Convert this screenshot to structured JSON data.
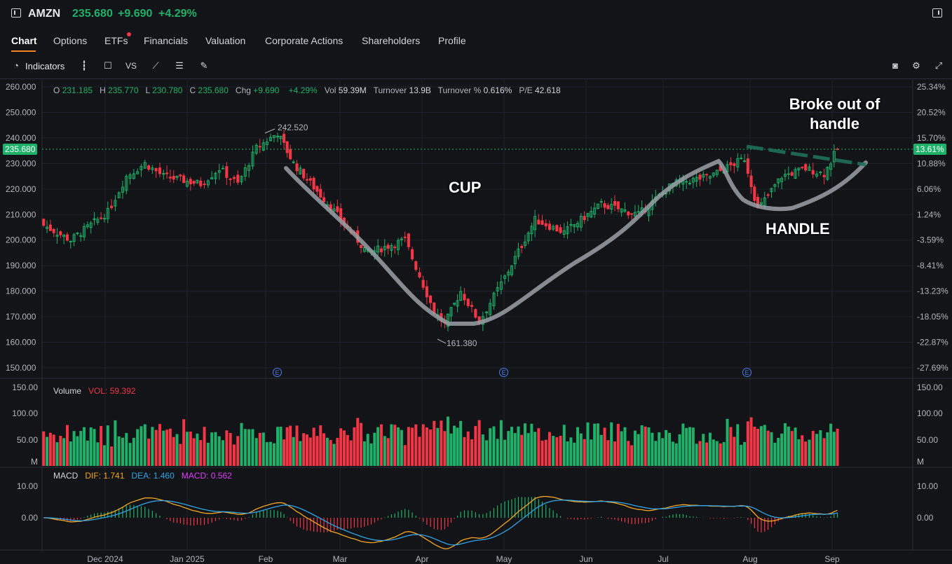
{
  "header": {
    "ticker": "AMZN",
    "price": "235.680",
    "change": "+9.690",
    "change_pct": "+4.29%"
  },
  "tabs": [
    {
      "label": "Chart",
      "active": true
    },
    {
      "label": "Options"
    },
    {
      "label": "ETFs",
      "badge": true
    },
    {
      "label": "Financials"
    },
    {
      "label": "Valuation"
    },
    {
      "label": "Corporate Actions"
    },
    {
      "label": "Shareholders"
    },
    {
      "label": "Profile"
    }
  ],
  "toolbar": {
    "indicators_label": "Indicators",
    "vs_label": "VS",
    "icons": [
      "indicators-icon",
      "candlestick-icon",
      "rectangle-icon",
      "vs-compare",
      "line-chart-icon",
      "list-icon",
      "draw-pen-icon",
      "camera-icon",
      "settings-gear-icon",
      "fullscreen-icon"
    ]
  },
  "ohlc": {
    "o_label": "O",
    "o": "231.185",
    "h_label": "H",
    "h": "235.770",
    "l_label": "L",
    "l": "230.780",
    "c_label": "C",
    "c": "235.680",
    "chg_label": "Chg",
    "chg": "+9.690",
    "chg_pct": "+4.29%",
    "vol_label": "Vol",
    "vol": "59.39M",
    "turnover_label": "Turnover",
    "turnover": "13.9B",
    "turnover_pct_label": "Turnover %",
    "turnover_pct": "0.616%",
    "pe_label": "P/E",
    "pe": "42.618"
  },
  "price_axis": {
    "left_ticks": [
      "260.000",
      "250.000",
      "240.000",
      "230.000",
      "220.000",
      "210.000",
      "200.000",
      "190.000",
      "180.000",
      "170.000",
      "160.000",
      "150.000"
    ],
    "right_ticks": [
      "25.34%",
      "20.52%",
      "15.70%",
      "10.88%",
      "6.06%",
      "1.24%",
      "-3.59%",
      "-8.41%",
      "-13.23%",
      "-18.05%",
      "-22.87%",
      "-27.69%"
    ],
    "current_left": "235.680",
    "current_right": "13.61%",
    "high_label": "242.520",
    "low_label": "161.380"
  },
  "annotations": {
    "cup": "CUP",
    "handle": "HANDLE",
    "breakout_line1": "Broke out of",
    "breakout_line2": "handle"
  },
  "x_axis": [
    "Dec 2024",
    "Jan 2025",
    "Feb",
    "Mar",
    "Apr",
    "May",
    "Jun",
    "Jul",
    "Aug",
    "Sep"
  ],
  "earnings_marker": "E",
  "volume": {
    "title": "Volume",
    "value_label": "VOL: 59.392",
    "ticks": [
      "150.00",
      "100.00",
      "50.00",
      "M"
    ]
  },
  "macd": {
    "title": "MACD",
    "dif": "DIF: 1.741",
    "dea": "DEA: 1.460",
    "macd": "MACD: 0.562",
    "ticks": [
      "10.00",
      "0.00"
    ]
  },
  "colors": {
    "up": "#1fb16a",
    "down": "#f23645",
    "dif": "#f5a623",
    "dea": "#2fa4e7",
    "macd": "#e040fb",
    "accent": "#f5821f"
  },
  "chart_data": {
    "type": "candlestick",
    "ylim": [
      150,
      260
    ],
    "key_points": [
      {
        "x": "2024-11-04",
        "close": 208
      },
      {
        "x": "2024-11-18",
        "close": 200
      },
      {
        "x": "2024-12-02",
        "close": 211
      },
      {
        "x": "2024-12-09",
        "close": 225
      },
      {
        "x": "2024-12-16",
        "close": 230
      },
      {
        "x": "2024-12-23",
        "close": 225
      },
      {
        "x": "2025-01-06",
        "close": 222
      },
      {
        "x": "2025-01-13",
        "close": 228
      },
      {
        "x": "2025-01-20",
        "close": 222
      },
      {
        "x": "2025-01-27",
        "close": 236
      },
      {
        "x": "2025-02-04",
        "close": 242
      },
      {
        "x": "2025-02-10",
        "close": 230
      },
      {
        "x": "2025-02-24",
        "close": 213
      },
      {
        "x": "2025-03-10",
        "close": 195
      },
      {
        "x": "2025-03-24",
        "close": 200
      },
      {
        "x": "2025-04-04",
        "close": 172
      },
      {
        "x": "2025-04-08",
        "close": 167
      },
      {
        "x": "2025-04-14",
        "close": 180
      },
      {
        "x": "2025-04-21",
        "close": 168
      },
      {
        "x": "2025-05-02",
        "close": 188
      },
      {
        "x": "2025-05-12",
        "close": 208
      },
      {
        "x": "2025-05-23",
        "close": 203
      },
      {
        "x": "2025-06-06",
        "close": 214
      },
      {
        "x": "2025-06-20",
        "close": 210
      },
      {
        "x": "2025-07-03",
        "close": 222
      },
      {
        "x": "2025-07-17",
        "close": 225
      },
      {
        "x": "2025-07-30",
        "close": 232
      },
      {
        "x": "2025-08-04",
        "close": 212
      },
      {
        "x": "2025-08-13",
        "close": 225
      },
      {
        "x": "2025-08-22",
        "close": 228
      },
      {
        "x": "2025-08-29",
        "close": 226
      },
      {
        "x": "2025-09-03",
        "close": 235.68
      }
    ]
  }
}
